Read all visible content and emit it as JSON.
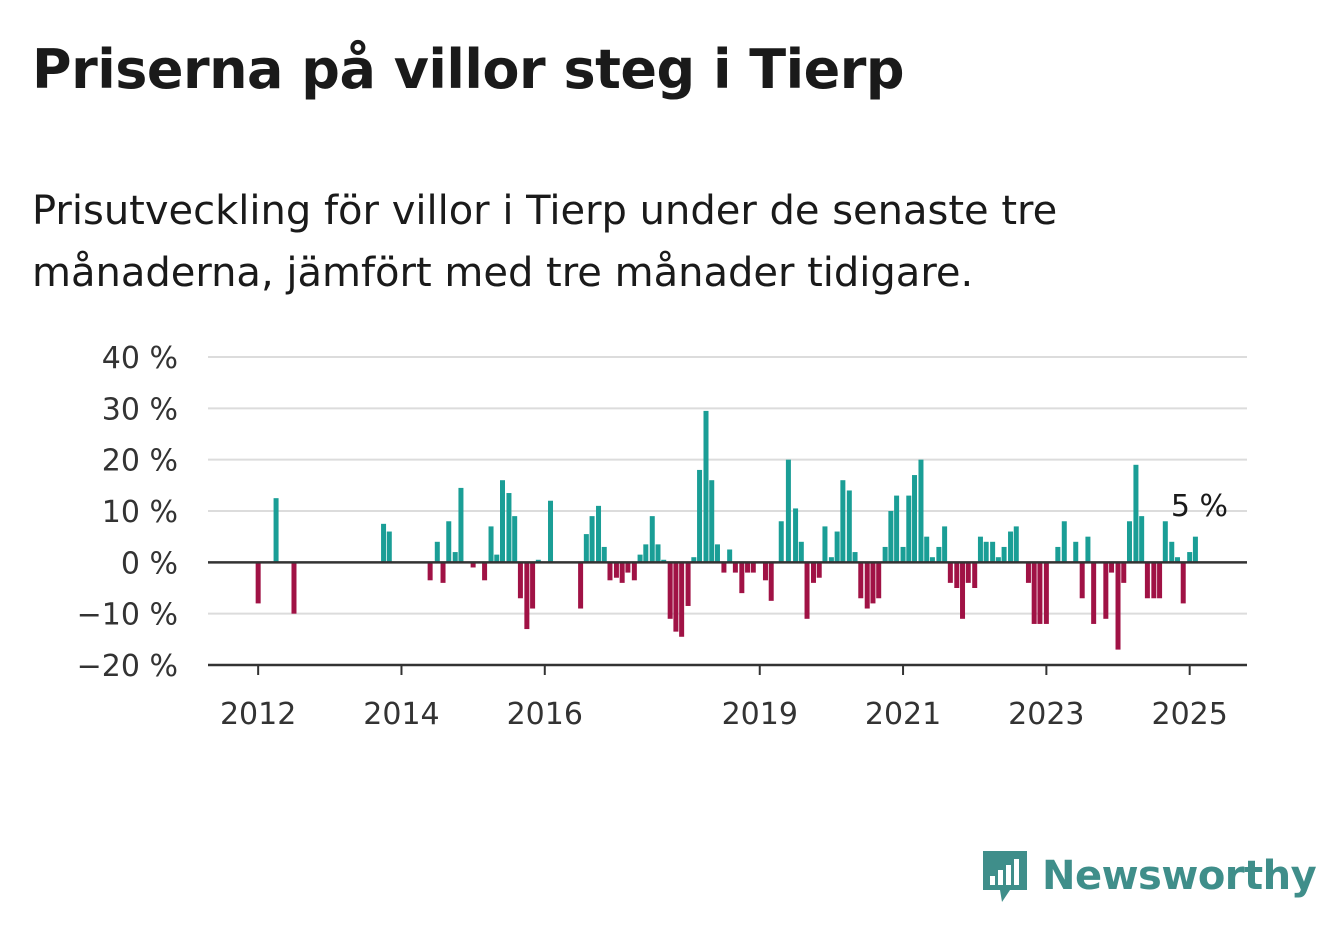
{
  "title": "Priserna på villor steg i Tierp",
  "subtitle": "Prisutveckling för villor i Tierp under de senaste tre månaderna, jämfört med tre månader tidigare.",
  "brand": {
    "name": "Newsworthy",
    "icon": "newsworthy-logo-icon",
    "color": "#3f8e8a"
  },
  "colors": {
    "positive": "#1a9e96",
    "negative": "#a01245",
    "grid": "#dcdcdc",
    "axis": "#333333"
  },
  "chart_data": {
    "type": "bar",
    "y_tick_labels": [
      "40 %",
      "30 %",
      "20 %",
      "10 %",
      "0 %",
      "−10 %",
      "−20 %"
    ],
    "y_ticks": [
      40,
      30,
      20,
      10,
      0,
      -10,
      -20
    ],
    "ylim": [
      -20,
      40
    ],
    "x_tick_labels": [
      "2012",
      "2014",
      "2016",
      "2019",
      "2021",
      "2023",
      "2025"
    ],
    "x_ticks": [
      2012.0,
      2014.0,
      2016.0,
      2019.0,
      2021.0,
      2023.0,
      2025.0
    ],
    "xlim": [
      2011.3,
      2025.8
    ],
    "last_value_label": "5 %",
    "grid": true,
    "series": [
      {
        "x": 2012.0,
        "value": -8
      },
      {
        "x": 2012.25,
        "value": 12.5
      },
      {
        "x": 2012.5,
        "value": -10
      },
      {
        "x": 2013.75,
        "value": 7.5
      },
      {
        "x": 2013.83,
        "value": 6
      },
      {
        "x": 2014.4,
        "value": -3.5
      },
      {
        "x": 2014.5,
        "value": 4
      },
      {
        "x": 2014.58,
        "value": -4
      },
      {
        "x": 2014.66,
        "value": 8
      },
      {
        "x": 2014.75,
        "value": 2
      },
      {
        "x": 2014.83,
        "value": 14.5
      },
      {
        "x": 2015.0,
        "value": -1
      },
      {
        "x": 2015.16,
        "value": -3.5
      },
      {
        "x": 2015.25,
        "value": 7
      },
      {
        "x": 2015.33,
        "value": 1.5
      },
      {
        "x": 2015.41,
        "value": 16
      },
      {
        "x": 2015.5,
        "value": 13.5
      },
      {
        "x": 2015.58,
        "value": 9
      },
      {
        "x": 2015.66,
        "value": -7
      },
      {
        "x": 2015.75,
        "value": -13
      },
      {
        "x": 2015.83,
        "value": -9
      },
      {
        "x": 2015.91,
        "value": 0.5
      },
      {
        "x": 2016.08,
        "value": 12
      },
      {
        "x": 2016.5,
        "value": -9
      },
      {
        "x": 2016.58,
        "value": 5.5
      },
      {
        "x": 2016.66,
        "value": 9
      },
      {
        "x": 2016.75,
        "value": 11
      },
      {
        "x": 2016.83,
        "value": 3
      },
      {
        "x": 2016.91,
        "value": -3.5
      },
      {
        "x": 2017.0,
        "value": -3
      },
      {
        "x": 2017.08,
        "value": -4
      },
      {
        "x": 2017.16,
        "value": -2
      },
      {
        "x": 2017.25,
        "value": -3.5
      },
      {
        "x": 2017.33,
        "value": 1.5
      },
      {
        "x": 2017.41,
        "value": 3.5
      },
      {
        "x": 2017.5,
        "value": 9
      },
      {
        "x": 2017.58,
        "value": 3.5
      },
      {
        "x": 2017.66,
        "value": 0.5
      },
      {
        "x": 2017.75,
        "value": -11
      },
      {
        "x": 2017.83,
        "value": -13.5
      },
      {
        "x": 2017.91,
        "value": -14.5
      },
      {
        "x": 2018.0,
        "value": -8.5
      },
      {
        "x": 2018.08,
        "value": 1
      },
      {
        "x": 2018.16,
        "value": 18
      },
      {
        "x": 2018.25,
        "value": 29.5
      },
      {
        "x": 2018.33,
        "value": 16
      },
      {
        "x": 2018.41,
        "value": 3.5
      },
      {
        "x": 2018.5,
        "value": -2
      },
      {
        "x": 2018.58,
        "value": 2.5
      },
      {
        "x": 2018.66,
        "value": -2
      },
      {
        "x": 2018.75,
        "value": -6
      },
      {
        "x": 2018.83,
        "value": -2
      },
      {
        "x": 2018.91,
        "value": -2
      },
      {
        "x": 2019.08,
        "value": -3.5
      },
      {
        "x": 2019.16,
        "value": -7.5
      },
      {
        "x": 2019.3,
        "value": 8
      },
      {
        "x": 2019.4,
        "value": 20
      },
      {
        "x": 2019.5,
        "value": 10.5
      },
      {
        "x": 2019.58,
        "value": 4
      },
      {
        "x": 2019.66,
        "value": -11
      },
      {
        "x": 2019.75,
        "value": -4
      },
      {
        "x": 2019.83,
        "value": -3
      },
      {
        "x": 2019.91,
        "value": 7
      },
      {
        "x": 2020.0,
        "value": 1
      },
      {
        "x": 2020.08,
        "value": 6
      },
      {
        "x": 2020.16,
        "value": 16
      },
      {
        "x": 2020.25,
        "value": 14
      },
      {
        "x": 2020.33,
        "value": 2
      },
      {
        "x": 2020.41,
        "value": -7
      },
      {
        "x": 2020.5,
        "value": -9
      },
      {
        "x": 2020.58,
        "value": -8
      },
      {
        "x": 2020.66,
        "value": -7
      },
      {
        "x": 2020.75,
        "value": 3
      },
      {
        "x": 2020.83,
        "value": 10
      },
      {
        "x": 2020.91,
        "value": 13
      },
      {
        "x": 2021.0,
        "value": 3
      },
      {
        "x": 2021.08,
        "value": 13
      },
      {
        "x": 2021.16,
        "value": 17
      },
      {
        "x": 2021.25,
        "value": 20
      },
      {
        "x": 2021.33,
        "value": 5
      },
      {
        "x": 2021.41,
        "value": 1
      },
      {
        "x": 2021.5,
        "value": 3
      },
      {
        "x": 2021.58,
        "value": 7
      },
      {
        "x": 2021.66,
        "value": -4
      },
      {
        "x": 2021.75,
        "value": -5
      },
      {
        "x": 2021.83,
        "value": -11
      },
      {
        "x": 2021.91,
        "value": -4
      },
      {
        "x": 2022.0,
        "value": -5
      },
      {
        "x": 2022.08,
        "value": 5
      },
      {
        "x": 2022.16,
        "value": 4
      },
      {
        "x": 2022.25,
        "value": 4
      },
      {
        "x": 2022.33,
        "value": 1
      },
      {
        "x": 2022.41,
        "value": 3
      },
      {
        "x": 2022.5,
        "value": 6
      },
      {
        "x": 2022.58,
        "value": 7
      },
      {
        "x": 2022.75,
        "value": -4
      },
      {
        "x": 2022.83,
        "value": -12
      },
      {
        "x": 2022.91,
        "value": -12
      },
      {
        "x": 2023.0,
        "value": -12
      },
      {
        "x": 2023.16,
        "value": 3
      },
      {
        "x": 2023.25,
        "value": 8
      },
      {
        "x": 2023.41,
        "value": 4
      },
      {
        "x": 2023.5,
        "value": -7
      },
      {
        "x": 2023.58,
        "value": 5
      },
      {
        "x": 2023.66,
        "value": -12
      },
      {
        "x": 2023.83,
        "value": -11
      },
      {
        "x": 2023.91,
        "value": -2
      },
      {
        "x": 2024.0,
        "value": -17
      },
      {
        "x": 2024.08,
        "value": -4
      },
      {
        "x": 2024.16,
        "value": 8
      },
      {
        "x": 2024.25,
        "value": 19
      },
      {
        "x": 2024.33,
        "value": 9
      },
      {
        "x": 2024.41,
        "value": -7
      },
      {
        "x": 2024.5,
        "value": -7
      },
      {
        "x": 2024.58,
        "value": -7
      },
      {
        "x": 2024.66,
        "value": 8
      },
      {
        "x": 2024.75,
        "value": 4
      },
      {
        "x": 2024.83,
        "value": 1
      },
      {
        "x": 2024.91,
        "value": -8
      },
      {
        "x": 2025.0,
        "value": 2
      },
      {
        "x": 2025.08,
        "value": 5
      }
    ]
  }
}
